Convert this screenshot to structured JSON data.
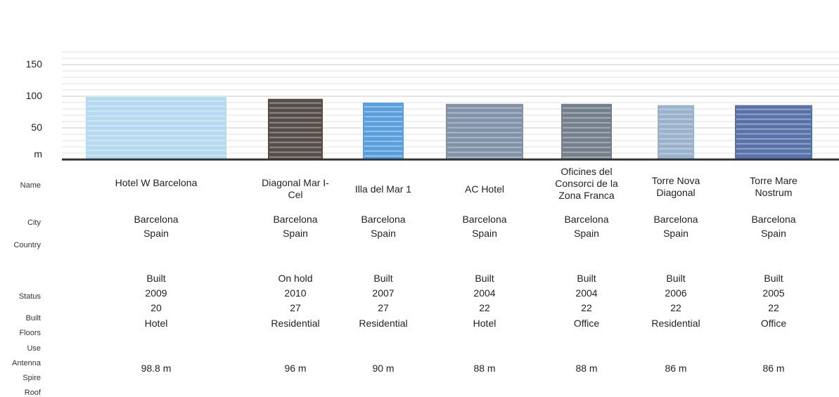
{
  "chart_data": {
    "type": "bar",
    "title": "",
    "ylabel": "m",
    "yticks": [
      150,
      100,
      50
    ],
    "ylim": [
      0,
      170
    ],
    "row_labels": [
      "Name",
      "City",
      "Country",
      "Status",
      "Built",
      "Floors",
      "Use",
      "Antenna",
      "Spire",
      "Roof"
    ],
    "categories": [
      "Hotel W Barcelona",
      "Diagonal Mar I-Cel",
      "Illa del Mar 1",
      "AC Hotel",
      "Oficines del Consorci de la Zona Franca",
      "Torre Nova Diagonal",
      "Torre Mare Nostrum"
    ],
    "values": [
      98.8,
      96,
      90,
      88,
      88,
      86,
      86
    ],
    "buildings": [
      {
        "name": "Hotel W Barcelona",
        "city": "Barcelona",
        "country": "Spain",
        "status": "Built",
        "built": "2009",
        "floors": "20",
        "use": "Hotel",
        "height": "98.8 m",
        "color": "#a9d4ec"
      },
      {
        "name": "Diagonal Mar I-Cel",
        "city": "Barcelona",
        "country": "Spain",
        "status": "On hold",
        "built": "2010",
        "floors": "27",
        "use": "Residential",
        "height": "96 m",
        "color": "#3a2e28"
      },
      {
        "name": "Illa del Mar 1",
        "city": "Barcelona",
        "country": "Spain",
        "status": "Built",
        "built": "2007",
        "floors": "27",
        "use": "Residential",
        "height": "90 m",
        "color": "#3e8fd6"
      },
      {
        "name": "AC Hotel",
        "city": "Barcelona",
        "country": "Spain",
        "status": "Built",
        "built": "2004",
        "floors": "22",
        "use": "Hotel",
        "height": "88 m",
        "color": "#6c7f9a"
      },
      {
        "name": "Oficines del Consorci de la Zona Franca",
        "city": "Barcelona",
        "country": "Spain",
        "status": "Built",
        "built": "2004",
        "floors": "22",
        "use": "Office",
        "height": "88 m",
        "color": "#5a6a78"
      },
      {
        "name": "Torre Nova Diagonal",
        "city": "Barcelona",
        "country": "Spain",
        "status": "Built",
        "built": "2006",
        "floors": "22",
        "use": "Residential",
        "height": "86 m",
        "color": "#8aa4c4"
      },
      {
        "name": "Torre Mare Nostrum",
        "city": "Barcelona",
        "country": "Spain",
        "status": "Built",
        "built": "2005",
        "floors": "22",
        "use": "Office",
        "height": "86 m",
        "color": "#3c5a9a"
      }
    ]
  }
}
